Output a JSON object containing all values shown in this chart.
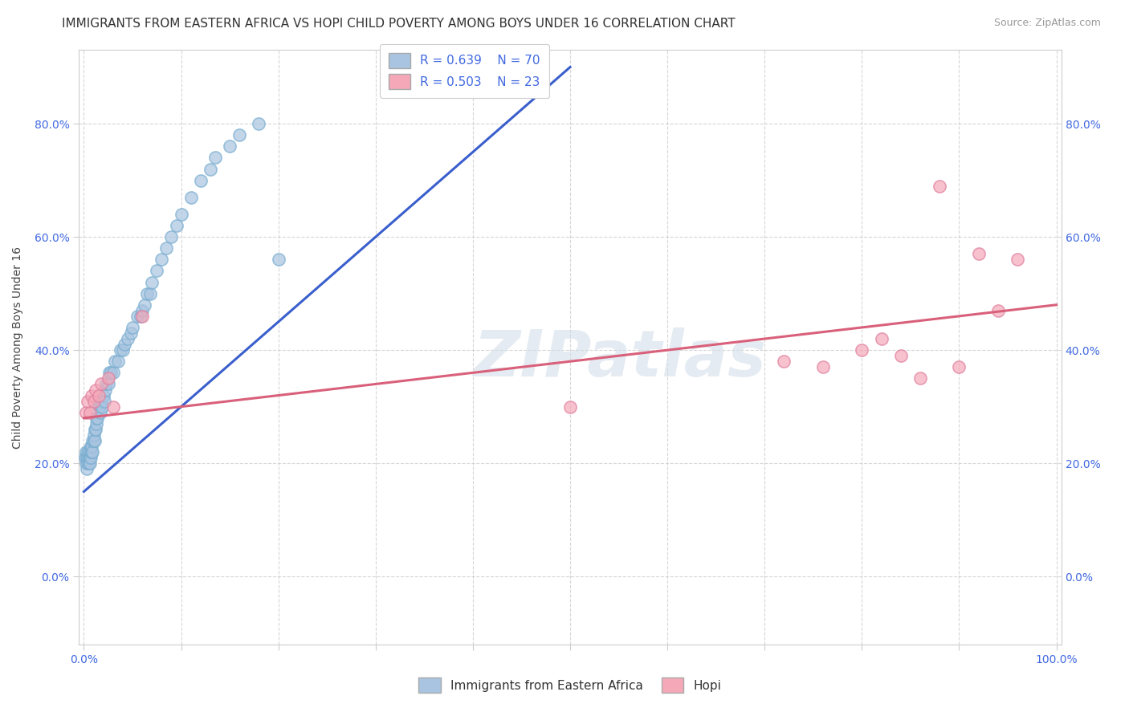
{
  "title": "IMMIGRANTS FROM EASTERN AFRICA VS HOPI CHILD POVERTY AMONG BOYS UNDER 16 CORRELATION CHART",
  "source": "Source: ZipAtlas.com",
  "ylabel": "Child Poverty Among Boys Under 16",
  "xlabel": "",
  "legend_blue_label": "Immigrants from Eastern Africa",
  "legend_pink_label": "Hopi",
  "blue_R": "R = 0.639",
  "blue_N": "N = 70",
  "pink_R": "R = 0.503",
  "pink_N": "N = 23",
  "xlim": [
    -0.005,
    1.005
  ],
  "ylim": [
    -0.12,
    0.93
  ],
  "xticks": [
    0.0,
    0.1,
    0.2,
    0.3,
    0.4,
    0.5,
    0.6,
    0.7,
    0.8,
    0.9,
    1.0
  ],
  "yticks": [
    0.0,
    0.2,
    0.4,
    0.6,
    0.8
  ],
  "ytick_labels": [
    "0.0%",
    "20.0%",
    "40.0%",
    "60.0%",
    "80.0%"
  ],
  "xtick_labels": [
    "0.0%",
    "",
    "",
    "",
    "",
    "",
    "",
    "",
    "",
    "",
    "100.0%"
  ],
  "blue_color": "#a8c4e0",
  "pink_color": "#f4a8b8",
  "blue_line_color": "#3a5fcd",
  "pink_line_color": "#d9607a",
  "watermark": "ZIPatlas",
  "background_color": "#ffffff",
  "blue_scatter_x": [
    0.001,
    0.002,
    0.002,
    0.003,
    0.003,
    0.004,
    0.004,
    0.004,
    0.005,
    0.005,
    0.005,
    0.006,
    0.006,
    0.007,
    0.007,
    0.007,
    0.008,
    0.008,
    0.009,
    0.009,
    0.01,
    0.01,
    0.011,
    0.011,
    0.012,
    0.013,
    0.013,
    0.014,
    0.015,
    0.016,
    0.017,
    0.018,
    0.019,
    0.02,
    0.021,
    0.022,
    0.023,
    0.025,
    0.026,
    0.028,
    0.03,
    0.032,
    0.035,
    0.038,
    0.04,
    0.042,
    0.045,
    0.048,
    0.05,
    0.055,
    0.058,
    0.06,
    0.062,
    0.065,
    0.068,
    0.07,
    0.075,
    0.08,
    0.085,
    0.09,
    0.095,
    0.1,
    0.11,
    0.12,
    0.13,
    0.135,
    0.15,
    0.16,
    0.18,
    0.2
  ],
  "blue_scatter_y": [
    0.21,
    0.2,
    0.22,
    0.19,
    0.21,
    0.2,
    0.21,
    0.22,
    0.2,
    0.21,
    0.22,
    0.21,
    0.2,
    0.21,
    0.22,
    0.23,
    0.22,
    0.23,
    0.22,
    0.24,
    0.24,
    0.25,
    0.24,
    0.26,
    0.26,
    0.27,
    0.28,
    0.28,
    0.3,
    0.3,
    0.29,
    0.31,
    0.3,
    0.32,
    0.31,
    0.33,
    0.34,
    0.34,
    0.36,
    0.36,
    0.36,
    0.38,
    0.38,
    0.4,
    0.4,
    0.41,
    0.42,
    0.43,
    0.44,
    0.46,
    0.46,
    0.47,
    0.48,
    0.5,
    0.5,
    0.52,
    0.54,
    0.56,
    0.58,
    0.6,
    0.62,
    0.64,
    0.67,
    0.7,
    0.72,
    0.74,
    0.76,
    0.78,
    0.8,
    0.56
  ],
  "pink_scatter_x": [
    0.002,
    0.004,
    0.006,
    0.008,
    0.01,
    0.012,
    0.015,
    0.018,
    0.025,
    0.03,
    0.06,
    0.5,
    0.72,
    0.76,
    0.8,
    0.82,
    0.84,
    0.86,
    0.88,
    0.9,
    0.92,
    0.94,
    0.96
  ],
  "pink_scatter_y": [
    0.29,
    0.31,
    0.29,
    0.32,
    0.31,
    0.33,
    0.32,
    0.34,
    0.35,
    0.3,
    0.46,
    0.3,
    0.38,
    0.37,
    0.4,
    0.42,
    0.39,
    0.35,
    0.69,
    0.37,
    0.57,
    0.47,
    0.56
  ],
  "blue_trendline_x": [
    0.0,
    0.5
  ],
  "blue_trendline_y": [
    0.15,
    0.9
  ],
  "pink_trendline_x": [
    0.0,
    1.0
  ],
  "pink_trendline_y": [
    0.28,
    0.48
  ],
  "title_fontsize": 11,
  "axis_label_fontsize": 10,
  "tick_fontsize": 10,
  "legend_fontsize": 11
}
